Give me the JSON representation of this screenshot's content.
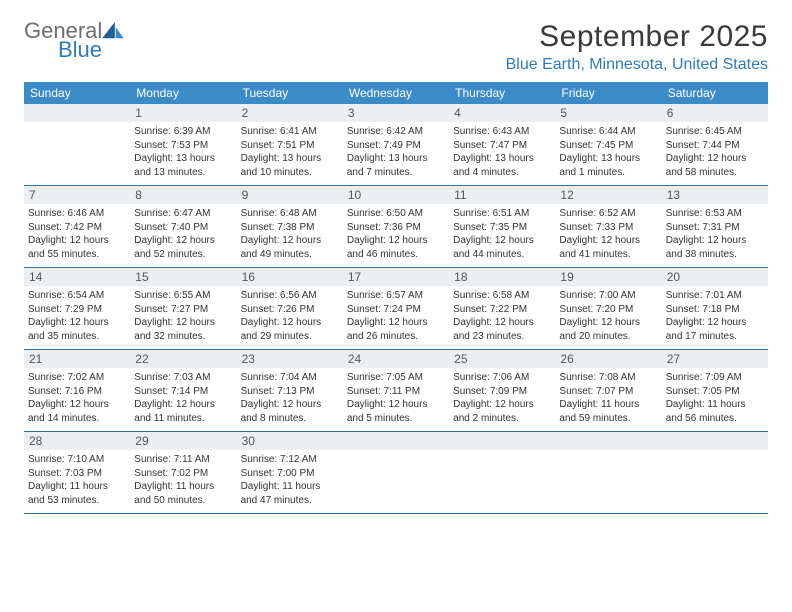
{
  "logo": {
    "line1": "General",
    "line2": "Blue"
  },
  "title": "September 2025",
  "location": "Blue Earth, Minnesota, United States",
  "header_color": "#3b8bc9",
  "daynum_bg": "#eceff1",
  "row_border": "#2f6fa6",
  "weekdays": [
    "Sunday",
    "Monday",
    "Tuesday",
    "Wednesday",
    "Thursday",
    "Friday",
    "Saturday"
  ],
  "weeks": [
    [
      {
        "blank": true
      },
      {
        "n": "1",
        "sunrise": "6:39 AM",
        "sunset": "7:53 PM",
        "day_h": "13",
        "day_m": "13"
      },
      {
        "n": "2",
        "sunrise": "6:41 AM",
        "sunset": "7:51 PM",
        "day_h": "13",
        "day_m": "10"
      },
      {
        "n": "3",
        "sunrise": "6:42 AM",
        "sunset": "7:49 PM",
        "day_h": "13",
        "day_m": "7"
      },
      {
        "n": "4",
        "sunrise": "6:43 AM",
        "sunset": "7:47 PM",
        "day_h": "13",
        "day_m": "4"
      },
      {
        "n": "5",
        "sunrise": "6:44 AM",
        "sunset": "7:45 PM",
        "day_h": "13",
        "day_m": "1"
      },
      {
        "n": "6",
        "sunrise": "6:45 AM",
        "sunset": "7:44 PM",
        "day_h": "12",
        "day_m": "58"
      }
    ],
    [
      {
        "n": "7",
        "sunrise": "6:46 AM",
        "sunset": "7:42 PM",
        "day_h": "12",
        "day_m": "55"
      },
      {
        "n": "8",
        "sunrise": "6:47 AM",
        "sunset": "7:40 PM",
        "day_h": "12",
        "day_m": "52"
      },
      {
        "n": "9",
        "sunrise": "6:48 AM",
        "sunset": "7:38 PM",
        "day_h": "12",
        "day_m": "49"
      },
      {
        "n": "10",
        "sunrise": "6:50 AM",
        "sunset": "7:36 PM",
        "day_h": "12",
        "day_m": "46"
      },
      {
        "n": "11",
        "sunrise": "6:51 AM",
        "sunset": "7:35 PM",
        "day_h": "12",
        "day_m": "44"
      },
      {
        "n": "12",
        "sunrise": "6:52 AM",
        "sunset": "7:33 PM",
        "day_h": "12",
        "day_m": "41"
      },
      {
        "n": "13",
        "sunrise": "6:53 AM",
        "sunset": "7:31 PM",
        "day_h": "12",
        "day_m": "38"
      }
    ],
    [
      {
        "n": "14",
        "sunrise": "6:54 AM",
        "sunset": "7:29 PM",
        "day_h": "12",
        "day_m": "35"
      },
      {
        "n": "15",
        "sunrise": "6:55 AM",
        "sunset": "7:27 PM",
        "day_h": "12",
        "day_m": "32"
      },
      {
        "n": "16",
        "sunrise": "6:56 AM",
        "sunset": "7:26 PM",
        "day_h": "12",
        "day_m": "29"
      },
      {
        "n": "17",
        "sunrise": "6:57 AM",
        "sunset": "7:24 PM",
        "day_h": "12",
        "day_m": "26"
      },
      {
        "n": "18",
        "sunrise": "6:58 AM",
        "sunset": "7:22 PM",
        "day_h": "12",
        "day_m": "23"
      },
      {
        "n": "19",
        "sunrise": "7:00 AM",
        "sunset": "7:20 PM",
        "day_h": "12",
        "day_m": "20"
      },
      {
        "n": "20",
        "sunrise": "7:01 AM",
        "sunset": "7:18 PM",
        "day_h": "12",
        "day_m": "17"
      }
    ],
    [
      {
        "n": "21",
        "sunrise": "7:02 AM",
        "sunset": "7:16 PM",
        "day_h": "12",
        "day_m": "14"
      },
      {
        "n": "22",
        "sunrise": "7:03 AM",
        "sunset": "7:14 PM",
        "day_h": "12",
        "day_m": "11"
      },
      {
        "n": "23",
        "sunrise": "7:04 AM",
        "sunset": "7:13 PM",
        "day_h": "12",
        "day_m": "8"
      },
      {
        "n": "24",
        "sunrise": "7:05 AM",
        "sunset": "7:11 PM",
        "day_h": "12",
        "day_m": "5"
      },
      {
        "n": "25",
        "sunrise": "7:06 AM",
        "sunset": "7:09 PM",
        "day_h": "12",
        "day_m": "2"
      },
      {
        "n": "26",
        "sunrise": "7:08 AM",
        "sunset": "7:07 PM",
        "day_h": "11",
        "day_m": "59"
      },
      {
        "n": "27",
        "sunrise": "7:09 AM",
        "sunset": "7:05 PM",
        "day_h": "11",
        "day_m": "56"
      }
    ],
    [
      {
        "n": "28",
        "sunrise": "7:10 AM",
        "sunset": "7:03 PM",
        "day_h": "11",
        "day_m": "53"
      },
      {
        "n": "29",
        "sunrise": "7:11 AM",
        "sunset": "7:02 PM",
        "day_h": "11",
        "day_m": "50"
      },
      {
        "n": "30",
        "sunrise": "7:12 AM",
        "sunset": "7:00 PM",
        "day_h": "11",
        "day_m": "47"
      },
      {
        "blank": true
      },
      {
        "blank": true
      },
      {
        "blank": true
      },
      {
        "blank": true
      }
    ]
  ]
}
